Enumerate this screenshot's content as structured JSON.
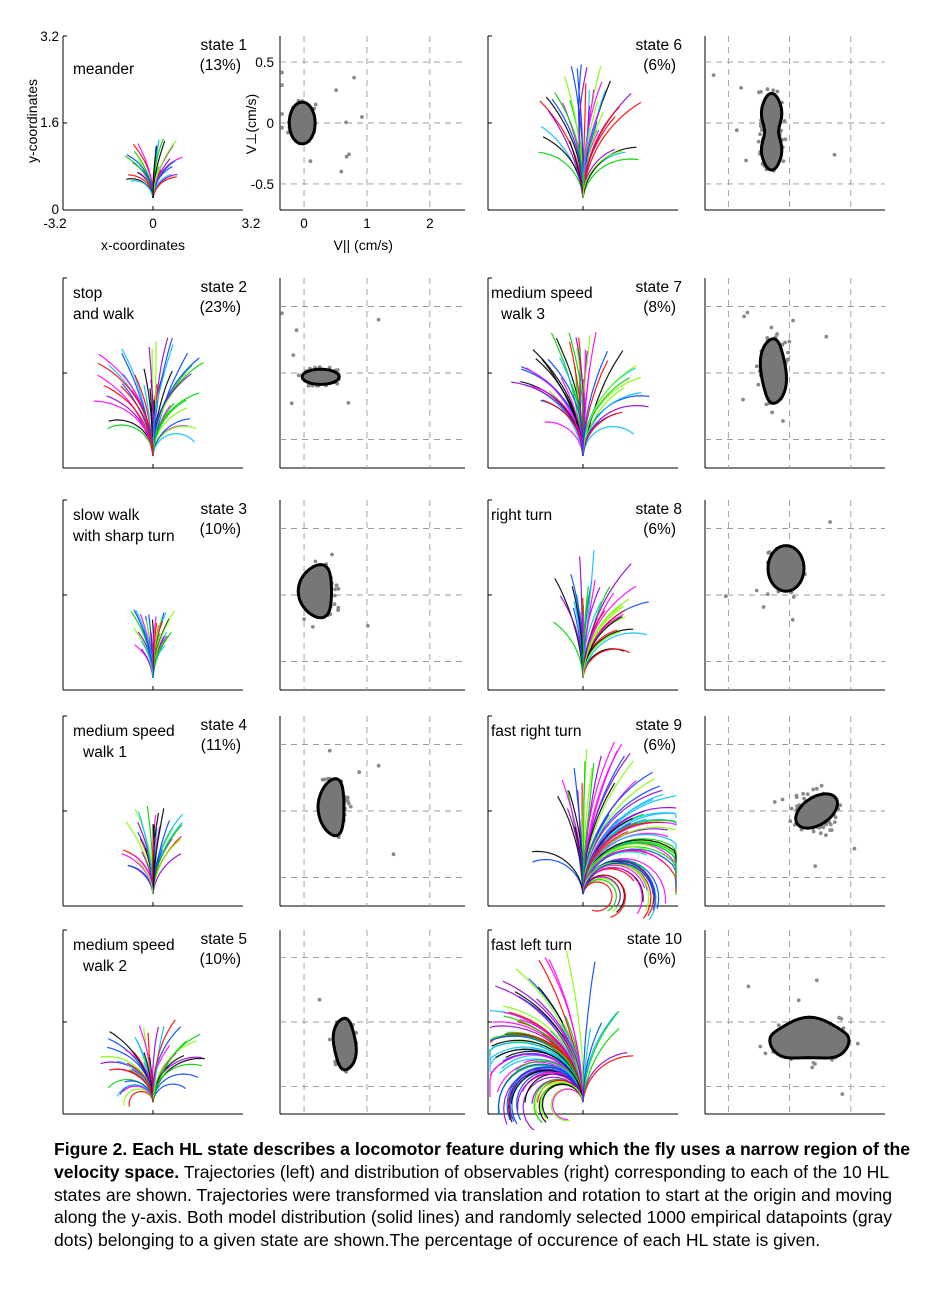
{
  "figure": {
    "axes_main": {
      "traj_ylabel": "y-coordinates",
      "traj_xlabel": "x-coordinates",
      "traj_yticks": [
        "3.2",
        "1.6",
        "0"
      ],
      "traj_xticks": [
        "-3.2",
        "0",
        "3.2"
      ],
      "vel_ylabel": "V⊥(cm/s)",
      "vel_xlabel": "V|| (cm/s)",
      "vel_yticks": [
        "0.5",
        "0",
        "-0.5"
      ],
      "vel_xticks": [
        "0",
        "1",
        "2"
      ]
    },
    "states": [
      {
        "state": "state 1",
        "pct": "(13%)",
        "name": [
          "meander"
        ]
      },
      {
        "state": "state 2",
        "pct": "(23%)",
        "name": [
          "stop",
          "and walk"
        ]
      },
      {
        "state": "state 3",
        "pct": "(10%)",
        "name": [
          "slow walk",
          "with sharp turn"
        ]
      },
      {
        "state": "state 4",
        "pct": "(11%)",
        "name": [
          "medium speed",
          "walk 1"
        ]
      },
      {
        "state": "state 5",
        "pct": "(10%)",
        "name": [
          "medium speed",
          "walk 2"
        ]
      },
      {
        "state": "state 6",
        "pct": "(6%)",
        "name": []
      },
      {
        "state": "state 7",
        "pct": "(8%)",
        "name": [
          "medium speed",
          "walk 3"
        ]
      },
      {
        "state": "state 8",
        "pct": "(6%)",
        "name": [
          "right turn"
        ]
      },
      {
        "state": "state 9",
        "pct": "(6%)",
        "name": [
          "fast right turn"
        ]
      },
      {
        "state": "state 10",
        "pct": "(6%)",
        "name": [
          "fast left turn"
        ]
      }
    ]
  },
  "caption": {
    "bold": "Figure 2. Each HL state describes a locomotor feature during which the fly uses a narrow region of the velocity space.",
    "text": " Trajectories (left) and distribution of observables (right) corresponding to each of the 10 HL states are shown. Trajectories were transformed via translation and rotation to start at the origin and moving along the y-axis. Both model distribution (solid lines) and randomly selected 1000 empirical datapoints (gray dots) belonging to a given state are shown.The percentage of occurence of each HL state is given."
  },
  "colors": {
    "dots": "#8a8a8a",
    "blob_fill": "#777777",
    "traj": [
      "#ff00ff",
      "#0044ff",
      "#00bfff",
      "#00d000",
      "#ff0000",
      "#000000",
      "#9400d3",
      "#7fff00"
    ]
  }
}
